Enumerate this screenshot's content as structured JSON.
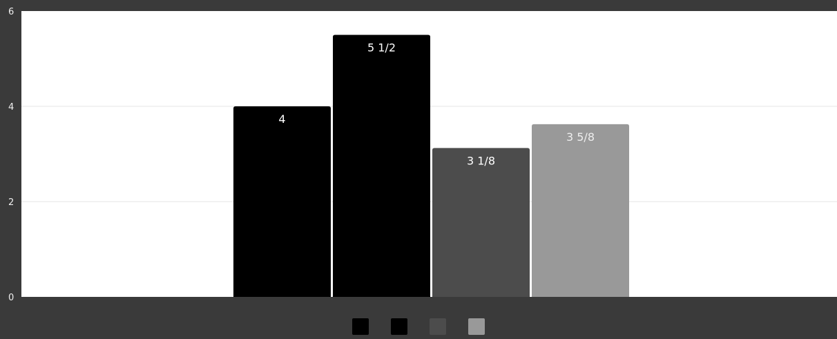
{
  "chart_data": {
    "type": "bar",
    "categories": [
      ""
    ],
    "series": [
      {
        "values": [
          4
        ],
        "data_label": "4",
        "color": "#000000",
        "label_color": "#ffffff"
      },
      {
        "values": [
          5.5
        ],
        "data_label": "5 1/2",
        "color": "#000000",
        "label_color": "#ffffff"
      },
      {
        "values": [
          3.125
        ],
        "data_label": "3 1/8",
        "color": "#4c4c4c",
        "label_color": "#ffffff"
      },
      {
        "values": [
          3.625
        ],
        "data_label": "3 5/8",
        "color": "#999999",
        "label_color": "#eeeeee"
      }
    ],
    "ylim": [
      0,
      6
    ],
    "yticks": [
      {
        "value": 0,
        "label": "0"
      },
      {
        "value": 2,
        "label": "2"
      },
      {
        "value": 4,
        "label": "4"
      },
      {
        "value": 6,
        "label": "6"
      }
    ],
    "grid": true,
    "legend_position": "bottom",
    "colors": {
      "background": "#3a3a3a",
      "plot_background": "#ffffff",
      "grid": "#e6e6e6",
      "axis_text": "#f0f0f0"
    }
  }
}
